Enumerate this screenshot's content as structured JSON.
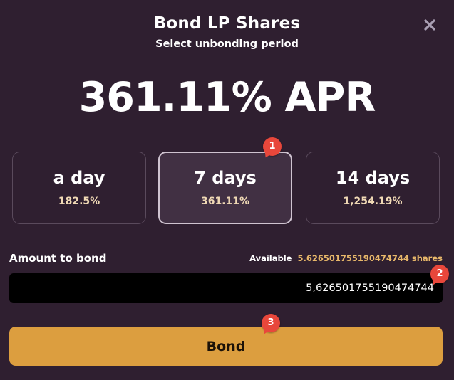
{
  "header": {
    "title": "Bond LP Shares",
    "subtitle": "Select unbonding period",
    "close_icon": "close-icon"
  },
  "apr_display": "361.11% APR",
  "periods": [
    {
      "name": "a day",
      "apr": "182.5%",
      "selected": false
    },
    {
      "name": "7 days",
      "apr": "361.11%",
      "selected": true
    },
    {
      "name": "14 days",
      "apr": "1,254.19%",
      "selected": false
    }
  ],
  "amount": {
    "label": "Amount to bond",
    "available_label": "Available",
    "available_value": "5.626501755190474744 shares",
    "input_value": "5,626501755190474744"
  },
  "bond_button": {
    "label": "Bond"
  },
  "markers": [
    "1",
    "2",
    "3"
  ],
  "colors": {
    "background": "#2f1f30",
    "accent": "#dc9e3f",
    "available_value": "#e8b86a",
    "marker": "#e8473b"
  }
}
